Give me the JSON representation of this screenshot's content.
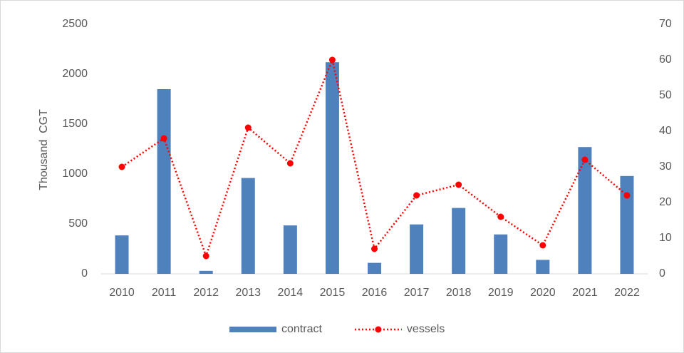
{
  "chart_data": {
    "type": "bar_line",
    "categories": [
      "2010",
      "2011",
      "2012",
      "2013",
      "2014",
      "2015",
      "2016",
      "2017",
      "2018",
      "2019",
      "2020",
      "2021",
      "2022"
    ],
    "series": [
      {
        "name": "contract",
        "type": "bar",
        "color": "#4f81bd",
        "values": [
          385,
          1850,
          30,
          960,
          485,
          2120,
          110,
          495,
          660,
          395,
          140,
          1270,
          980
        ]
      },
      {
        "name": "vessels",
        "type": "line",
        "axis": "y2",
        "color": "#ff0000",
        "values": [
          30,
          38,
          5,
          41,
          31,
          60,
          7,
          22,
          25,
          16,
          8,
          32,
          22
        ]
      }
    ],
    "ylabel": "Thousand  CGT",
    "ylim": [
      0,
      2500
    ],
    "yticks": [
      0,
      500,
      1000,
      1500,
      2000,
      2500
    ],
    "y2lim": [
      0,
      70
    ],
    "y2ticks": [
      0,
      10,
      20,
      30,
      40,
      50,
      60,
      70
    ],
    "grid": false,
    "legend": "bottom"
  }
}
